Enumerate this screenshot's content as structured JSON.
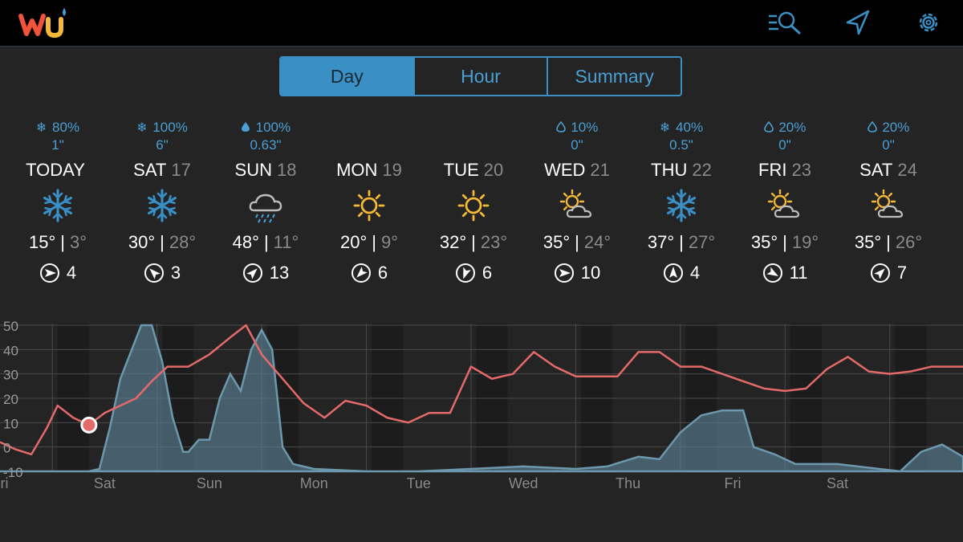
{
  "app": {
    "logo": "wu-logo",
    "icons": [
      "search-list-icon",
      "location-arrow-icon",
      "gear-icon"
    ]
  },
  "tabs": [
    {
      "label": "Day",
      "active": true
    },
    {
      "label": "Hour",
      "active": false
    },
    {
      "label": "Summary",
      "active": false
    }
  ],
  "days": [
    {
      "name": "TODAY",
      "date": "",
      "precip_icon": "snowflake-icon",
      "precip": "80%",
      "amount": "1\"",
      "weather_icon": "snow-icon",
      "hi": "15°",
      "lo": "3°",
      "wind_dir_deg": 90,
      "wind": "4"
    },
    {
      "name": "SAT",
      "date": "17",
      "precip_icon": "snowflake-icon",
      "precip": "100%",
      "amount": "6\"",
      "weather_icon": "snow-icon",
      "hi": "30°",
      "lo": "28°",
      "wind_dir_deg": 315,
      "wind": "3"
    },
    {
      "name": "SUN",
      "date": "18",
      "precip_icon": "raindrop-icon",
      "precip": "100%",
      "amount": "0.63\"",
      "weather_icon": "rain-icon",
      "hi": "48°",
      "lo": "11°",
      "wind_dir_deg": 45,
      "wind": "13"
    },
    {
      "name": "MON",
      "date": "19",
      "precip_icon": "",
      "precip": "",
      "amount": "",
      "weather_icon": "sunny-icon",
      "hi": "20°",
      "lo": "9°",
      "wind_dir_deg": 225,
      "wind": "6"
    },
    {
      "name": "TUE",
      "date": "20",
      "precip_icon": "",
      "precip": "",
      "amount": "",
      "weather_icon": "sunny-icon",
      "hi": "32°",
      "lo": "23°",
      "wind_dir_deg": 200,
      "wind": "6"
    },
    {
      "name": "WED",
      "date": "21",
      "precip_icon": "raindrop-outline-icon",
      "precip": "10%",
      "amount": "0\"",
      "weather_icon": "partly-cloudy-icon",
      "hi": "35°",
      "lo": "24°",
      "wind_dir_deg": 90,
      "wind": "10"
    },
    {
      "name": "THU",
      "date": "22",
      "precip_icon": "snowflake-icon",
      "precip": "40%",
      "amount": "0.5\"",
      "weather_icon": "snow-icon",
      "hi": "37°",
      "lo": "27°",
      "wind_dir_deg": 0,
      "wind": "4"
    },
    {
      "name": "FRI",
      "date": "23",
      "precip_icon": "raindrop-outline-icon",
      "precip": "20%",
      "amount": "0\"",
      "weather_icon": "partly-cloudy-icon",
      "hi": "35°",
      "lo": "19°",
      "wind_dir_deg": 120,
      "wind": "11"
    },
    {
      "name": "SAT",
      "date": "24",
      "precip_icon": "raindrop-outline-icon",
      "precip": "20%",
      "amount": "0\"",
      "weather_icon": "partly-cloudy-icon",
      "hi": "35°",
      "lo": "26°",
      "wind_dir_deg": 45,
      "wind": "7"
    }
  ],
  "colors": {
    "accent": "#3a8fc4",
    "temp_line": "#e46a6a",
    "precip_fill": "#5a7f94",
    "sun": "#f5b93a"
  },
  "chart_data": {
    "type": "area",
    "yticks": [
      50,
      40,
      30,
      20,
      10,
      0,
      -10
    ],
    "ylim": [
      -10,
      50
    ],
    "xlim": [
      0,
      9.2
    ],
    "xlabels": [
      "Fri",
      "Sat",
      "Sun",
      "Mon",
      "Tue",
      "Wed",
      "Thu",
      "Fri",
      "Sat"
    ],
    "current_marker": {
      "x": 0.85,
      "y": 9
    },
    "series": [
      {
        "x": [
          0,
          0.15,
          0.3,
          0.45,
          0.55,
          0.7,
          0.85,
          1.0,
          1.15,
          1.3,
          1.45,
          1.6,
          1.8,
          2.0,
          2.2,
          2.35,
          2.5,
          2.7,
          2.9,
          3.1,
          3.3,
          3.5,
          3.7,
          3.9,
          4.1,
          4.3,
          4.5,
          4.7,
          4.9,
          5.1,
          5.3,
          5.5,
          5.7,
          5.9,
          6.1,
          6.3,
          6.5,
          6.7,
          6.9,
          7.1,
          7.3,
          7.5,
          7.7,
          7.9,
          8.1,
          8.3,
          8.5,
          8.7,
          8.9,
          9.1,
          9.2
        ],
        "y": [
          2,
          -1,
          -3,
          8,
          17,
          12,
          9,
          14,
          17,
          20,
          27,
          33,
          33,
          38,
          45,
          50,
          38,
          28,
          18,
          12,
          19,
          17,
          12,
          10,
          14,
          14,
          33,
          28,
          30,
          39,
          33,
          29,
          29,
          29,
          39,
          39,
          33,
          33,
          30,
          27,
          24,
          23,
          24,
          32,
          37,
          31,
          30,
          31,
          33,
          33,
          33
        ]
      },
      {
        "x": [
          0,
          0.85,
          0.95,
          1.05,
          1.15,
          1.25,
          1.35,
          1.45,
          1.55,
          1.65,
          1.75,
          1.8,
          1.9,
          2.0,
          2.1,
          2.2,
          2.3,
          2.4,
          2.5,
          2.6,
          2.7,
          2.8,
          3.0,
          3.5,
          4.0,
          4.5,
          5.0,
          5.5,
          5.8,
          6.1,
          6.3,
          6.5,
          6.7,
          6.9,
          7.1,
          7.2,
          7.4,
          7.6,
          7.8,
          8.0,
          8.2,
          8.4,
          8.6,
          8.8,
          9.0,
          9.2
        ],
        "y": [
          -10,
          -10,
          -9,
          8,
          28,
          39,
          50,
          50,
          35,
          12,
          -2,
          -2,
          3,
          3,
          20,
          30,
          23,
          40,
          48,
          40,
          0,
          -7,
          -9,
          -10,
          -10,
          -9,
          -8,
          -9,
          -8,
          -4,
          -5,
          6,
          13,
          15,
          15,
          0,
          -3,
          -7,
          -7,
          -7,
          -8,
          -9,
          -10,
          -2,
          1,
          -4
        ]
      }
    ]
  }
}
